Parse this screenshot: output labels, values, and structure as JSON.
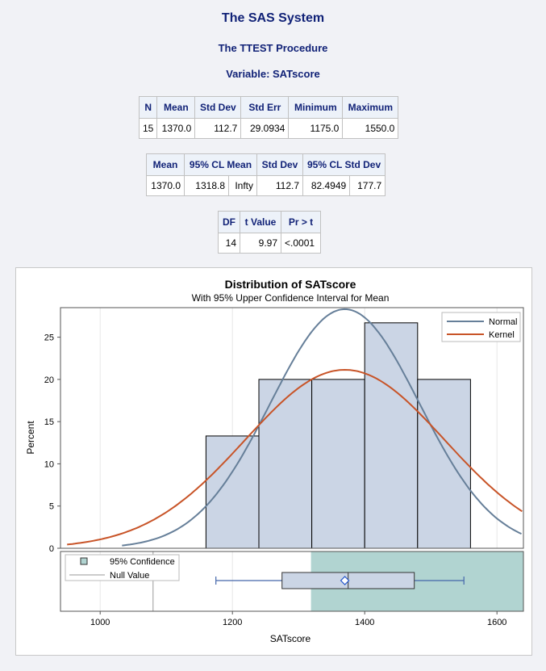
{
  "header": {
    "system_title": "The SAS System",
    "procedure_title": "The TTEST Procedure",
    "variable_title": "Variable: SATscore"
  },
  "table_summary": {
    "columns": [
      "N",
      "Mean",
      "Std Dev",
      "Std Err",
      "Minimum",
      "Maximum"
    ],
    "row": [
      "15",
      "1370.0",
      "112.7",
      "29.0934",
      "1175.0",
      "1550.0"
    ]
  },
  "table_ci": {
    "columns": [
      "Mean",
      "95% CL Mean",
      "Std Dev",
      "95% CL Std Dev"
    ],
    "row": [
      "1370.0",
      "1318.8",
      "Infty",
      "112.7",
      "82.4949",
      "177.7"
    ]
  },
  "table_test": {
    "columns": [
      "DF",
      "t Value",
      "Pr > t"
    ],
    "row": [
      "14",
      "9.97",
      "<.0001"
    ]
  },
  "chart_data": {
    "type": "bar",
    "title": "Distribution of SATscore",
    "subtitle": "With 95% Upper Confidence Interval for Mean",
    "xlabel": "SATscore",
    "ylabel": "Percent",
    "xlim": [
      940,
      1640
    ],
    "ylim": [
      0,
      28.5
    ],
    "xticks": [
      1000,
      1200,
      1400,
      1600
    ],
    "yticks": [
      0,
      5,
      10,
      15,
      20,
      25
    ],
    "grid": true,
    "bins": [
      {
        "x0": 1160,
        "x1": 1240,
        "percent": 13.3
      },
      {
        "x0": 1240,
        "x1": 1320,
        "percent": 20.0
      },
      {
        "x0": 1320,
        "x1": 1400,
        "percent": 20.0
      },
      {
        "x0": 1400,
        "x1": 1480,
        "percent": 26.7
      },
      {
        "x0": 1480,
        "x1": 1560,
        "percent": 20.0
      }
    ],
    "legend": {
      "placement": "top-right",
      "entries": [
        {
          "name": "Normal",
          "color": "#667f99"
        },
        {
          "name": "Kernel",
          "color": "#c85428"
        }
      ]
    },
    "normal_curve": {
      "mean": 1370.0,
      "sd": 112.7,
      "x_start": 1033,
      "x_end": 1640
    },
    "kernel_curve": {
      "mean": 1370.0,
      "sd": 151.0,
      "x_start": 950,
      "x_end": 1640
    },
    "boxplot": {
      "min": 1175,
      "q1": 1275,
      "median": 1375,
      "q3": 1475,
      "max": 1550,
      "mean": 1370
    },
    "confidence_band": {
      "lower": 1318.8,
      "upper": "Infty"
    },
    "null_value": 1080,
    "inset_legend": {
      "placement": "top-left",
      "entries": [
        "95% Confidence",
        "Null Value"
      ]
    },
    "colors": {
      "bar_fill": "#cbd5e5",
      "bar_edge": "#000000",
      "normal": "#667f99",
      "kernel": "#c85428",
      "confidence": "#b1d4d1",
      "box_fill": "#cbd5e5",
      "whisker": "#4466aa",
      "mean_marker": "#2255cc"
    }
  }
}
